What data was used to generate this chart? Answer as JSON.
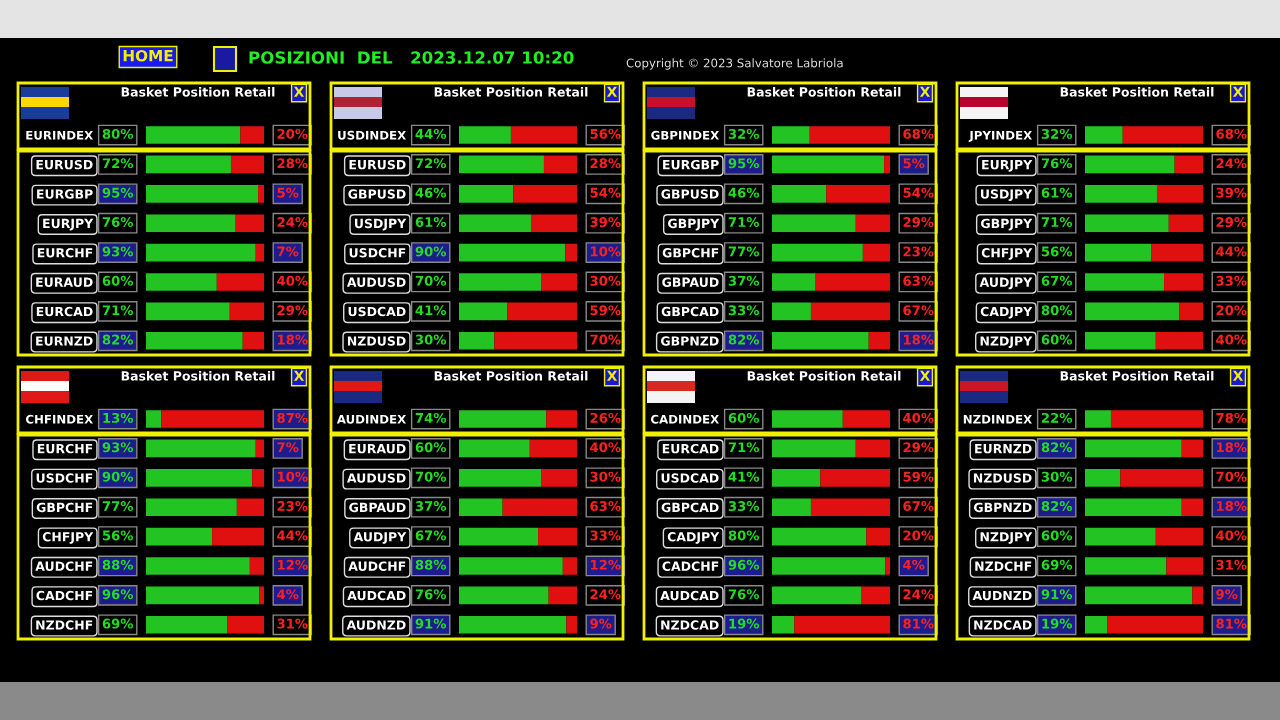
{
  "chart_data": [
    {
      "type": "bar",
      "orientation": "horizontal",
      "stacked": true,
      "title": "Basket Position Retail",
      "categories": [
        "EURINDEX",
        "EURUSD",
        "EURGBP",
        "EURJPY",
        "EURCHF",
        "EURAUD",
        "EURCAD",
        "EURNZD"
      ],
      "xlim": [
        0,
        100
      ],
      "tick_labels": "y",
      "annotations": [
        "X",
        "HOME",
        "POSIZIONI  DEL   2023.12.07 10:20",
        "Copyright © 2023 Salvatore Labriola"
      ],
      "series": [
        {
          "color": "#22c322",
          "values": [
            80,
            72,
            95,
            76,
            93,
            60,
            71,
            82
          ],
          "value_labels": [
            "80%",
            "72%",
            "95%",
            "76%",
            "93%",
            "60%",
            "71%",
            "82%"
          ]
        },
        {
          "color": "#e01010",
          "values": [
            20,
            28,
            5,
            24,
            7,
            40,
            29,
            18
          ],
          "value_labels": [
            "20%",
            "28%",
            "5%",
            "24%",
            "7%",
            "40%",
            "29%",
            "18%"
          ]
        }
      ]
    },
    {
      "type": "bar",
      "orientation": "horizontal",
      "stacked": true,
      "title": "Basket Position Retail",
      "categories": [
        "USDINDEX",
        "EURUSD",
        "GBPUSD",
        "USDJPY",
        "USDCHF",
        "AUDUSD",
        "USDCAD",
        "NZDUSD"
      ],
      "xlim": [
        0,
        100
      ],
      "tick_labels": "y",
      "annotations": [
        "X"
      ],
      "series": [
        {
          "color": "#22c322",
          "values": [
            44,
            72,
            46,
            61,
            90,
            70,
            41,
            30
          ],
          "value_labels": [
            "44%",
            "72%",
            "46%",
            "61%",
            "90%",
            "70%",
            "41%",
            "30%"
          ]
        },
        {
          "color": "#e01010",
          "values": [
            56,
            28,
            54,
            39,
            10,
            30,
            59,
            70
          ],
          "value_labels": [
            "56%",
            "28%",
            "54%",
            "39%",
            "10%",
            "30%",
            "59%",
            "70%"
          ]
        }
      ]
    },
    {
      "type": "bar",
      "orientation": "horizontal",
      "stacked": true,
      "title": "Basket Position Retail",
      "categories": [
        "GBPINDEX",
        "EURGBP",
        "GBPUSD",
        "GBPJPY",
        "GBPCHF",
        "GBPAUD",
        "GBPCAD",
        "GBPNZD"
      ],
      "xlim": [
        0,
        100
      ],
      "tick_labels": "y",
      "annotations": [
        "X"
      ],
      "series": [
        {
          "color": "#22c322",
          "values": [
            32,
            95,
            46,
            71,
            77,
            37,
            33,
            82
          ],
          "value_labels": [
            "32%",
            "95%",
            "46%",
            "71%",
            "77%",
            "37%",
            "33%",
            "82%"
          ]
        },
        {
          "color": "#e01010",
          "values": [
            68,
            5,
            54,
            29,
            23,
            63,
            67,
            18
          ],
          "value_labels": [
            "68%",
            "5%",
            "54%",
            "29%",
            "23%",
            "63%",
            "67%",
            "18%"
          ]
        }
      ]
    },
    {
      "type": "bar",
      "orientation": "horizontal",
      "stacked": true,
      "title": "Basket Position Retail",
      "categories": [
        "JPYINDEX",
        "EURJPY",
        "USDJPY",
        "GBPJPY",
        "CHFJPY",
        "AUDJPY",
        "CADJPY",
        "NZDJPY"
      ],
      "xlim": [
        0,
        100
      ],
      "tick_labels": "y",
      "annotations": [
        "X"
      ],
      "series": [
        {
          "color": "#22c322",
          "values": [
            32,
            76,
            61,
            71,
            56,
            67,
            80,
            60
          ],
          "value_labels": [
            "32%",
            "76%",
            "61%",
            "71%",
            "56%",
            "67%",
            "80%",
            "60%"
          ]
        },
        {
          "color": "#e01010",
          "values": [
            68,
            24,
            39,
            29,
            44,
            33,
            20,
            40
          ],
          "value_labels": [
            "68%",
            "24%",
            "39%",
            "29%",
            "44%",
            "33%",
            "20%",
            "40%"
          ]
        }
      ]
    },
    {
      "type": "bar",
      "orientation": "horizontal",
      "stacked": true,
      "title": "Basket Position Retail",
      "categories": [
        "CHFINDEX",
        "EURCHF",
        "USDCHF",
        "GBPCHF",
        "CHFJPY",
        "AUDCHF",
        "CADCHF",
        "NZDCHF"
      ],
      "xlim": [
        0,
        100
      ],
      "tick_labels": "y",
      "annotations": [
        "X"
      ],
      "series": [
        {
          "color": "#22c322",
          "values": [
            13,
            93,
            90,
            77,
            56,
            88,
            96,
            69
          ],
          "value_labels": [
            "13%",
            "93%",
            "90%",
            "77%",
            "56%",
            "88%",
            "96%",
            "69%"
          ]
        },
        {
          "color": "#e01010",
          "values": [
            87,
            7,
            10,
            23,
            44,
            12,
            4,
            31
          ],
          "value_labels": [
            "87%",
            "7%",
            "10%",
            "23%",
            "44%",
            "12%",
            "4%",
            "31%"
          ]
        }
      ]
    },
    {
      "type": "bar",
      "orientation": "horizontal",
      "stacked": true,
      "title": "Basket Position Retail",
      "categories": [
        "AUDINDEX",
        "EURAUD",
        "AUDUSD",
        "GBPAUD",
        "AUDJPY",
        "AUDCHF",
        "AUDCAD",
        "AUDNZD"
      ],
      "xlim": [
        0,
        100
      ],
      "tick_labels": "y",
      "annotations": [
        "X"
      ],
      "series": [
        {
          "color": "#22c322",
          "values": [
            74,
            60,
            70,
            37,
            67,
            88,
            76,
            91
          ],
          "value_labels": [
            "74%",
            "60%",
            "70%",
            "37%",
            "67%",
            "88%",
            "76%",
            "91%"
          ]
        },
        {
          "color": "#e01010",
          "values": [
            26,
            40,
            30,
            63,
            33,
            12,
            24,
            9
          ],
          "value_labels": [
            "26%",
            "40%",
            "30%",
            "63%",
            "33%",
            "12%",
            "24%",
            "9%"
          ]
        }
      ]
    },
    {
      "type": "bar",
      "orientation": "horizontal",
      "stacked": true,
      "title": "Basket Position Retail",
      "categories": [
        "CADINDEX",
        "EURCAD",
        "USDCAD",
        "GBPCAD",
        "CADJPY",
        "CADCHF",
        "AUDCAD",
        "NZDCAD"
      ],
      "xlim": [
        0,
        100
      ],
      "tick_labels": "y",
      "annotations": [
        "X"
      ],
      "series": [
        {
          "color": "#22c322",
          "values": [
            60,
            71,
            41,
            33,
            80,
            96,
            76,
            19
          ],
          "value_labels": [
            "60%",
            "71%",
            "41%",
            "33%",
            "80%",
            "96%",
            "76%",
            "19%"
          ]
        },
        {
          "color": "#e01010",
          "values": [
            40,
            29,
            59,
            67,
            20,
            4,
            24,
            81
          ],
          "value_labels": [
            "40%",
            "29%",
            "59%",
            "67%",
            "20%",
            "4%",
            "24%",
            "81%"
          ]
        }
      ]
    },
    {
      "type": "bar",
      "orientation": "horizontal",
      "stacked": true,
      "title": "Basket Position Retail",
      "categories": [
        "NZDINDEX",
        "EURNZD",
        "NZDUSD",
        "GBPNZD",
        "NZDJPY",
        "NZDCHF",
        "AUDNZD",
        "NZDCAD"
      ],
      "xlim": [
        0,
        100
      ],
      "tick_labels": "y",
      "annotations": [
        "X"
      ],
      "series": [
        {
          "color": "#22c322",
          "values": [
            22,
            82,
            30,
            82,
            60,
            69,
            91,
            19
          ],
          "value_labels": [
            "22%",
            "82%",
            "30%",
            "82%",
            "60%",
            "69%",
            "91%",
            "19%"
          ]
        },
        {
          "color": "#e01010",
          "values": [
            78,
            18,
            70,
            18,
            40,
            31,
            9,
            81
          ],
          "value_labels": [
            "78%",
            "18%",
            "70%",
            "18%",
            "40%",
            "31%",
            "9%",
            "81%"
          ]
        }
      ]
    }
  ]
}
